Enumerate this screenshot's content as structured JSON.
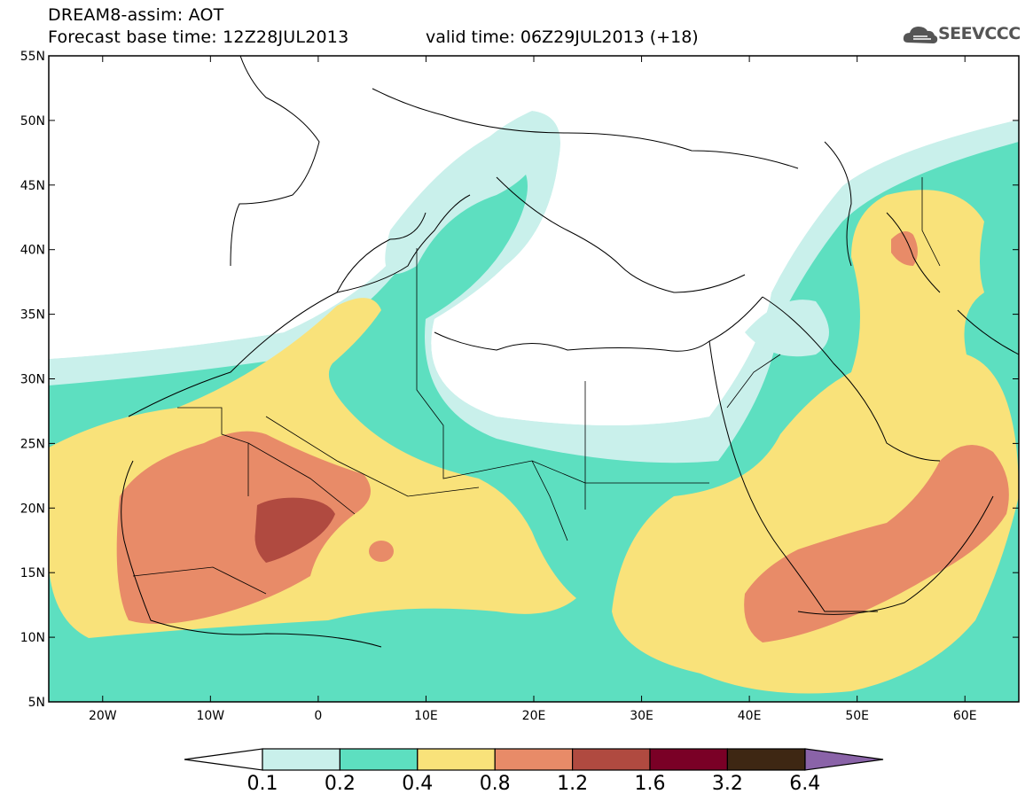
{
  "header": {
    "title_line1": "DREAM8-assim: AOT",
    "title_line2": "Forecast base time: 12Z28JUL2013",
    "valid_time": "valid time: 06Z29JUL2013 (+18)",
    "logo_text": "SEEVCCC",
    "logo_icon": "cloud-icon"
  },
  "map": {
    "lon_labels": [
      "20W",
      "10W",
      "0",
      "10E",
      "20E",
      "30E",
      "40E",
      "50E",
      "60E"
    ],
    "lat_labels": [
      "55N",
      "50N",
      "45N",
      "40N",
      "35N",
      "30N",
      "25N",
      "20N",
      "15N",
      "10N",
      "5N"
    ],
    "lon_range": [
      -25,
      65
    ],
    "lat_range": [
      5,
      55
    ],
    "variable": "AOT"
  },
  "colorbar": {
    "labels": [
      "0.1",
      "0.2",
      "0.4",
      "0.8",
      "1.2",
      "1.6",
      "3.2",
      "6.4"
    ],
    "colors": [
      "#ffffff",
      "#c9f0eb",
      "#5ddfc0",
      "#f9e27a",
      "#e88b68",
      "#b04a40",
      "#7a0026",
      "#3e2713",
      "#8a63a8"
    ]
  }
}
